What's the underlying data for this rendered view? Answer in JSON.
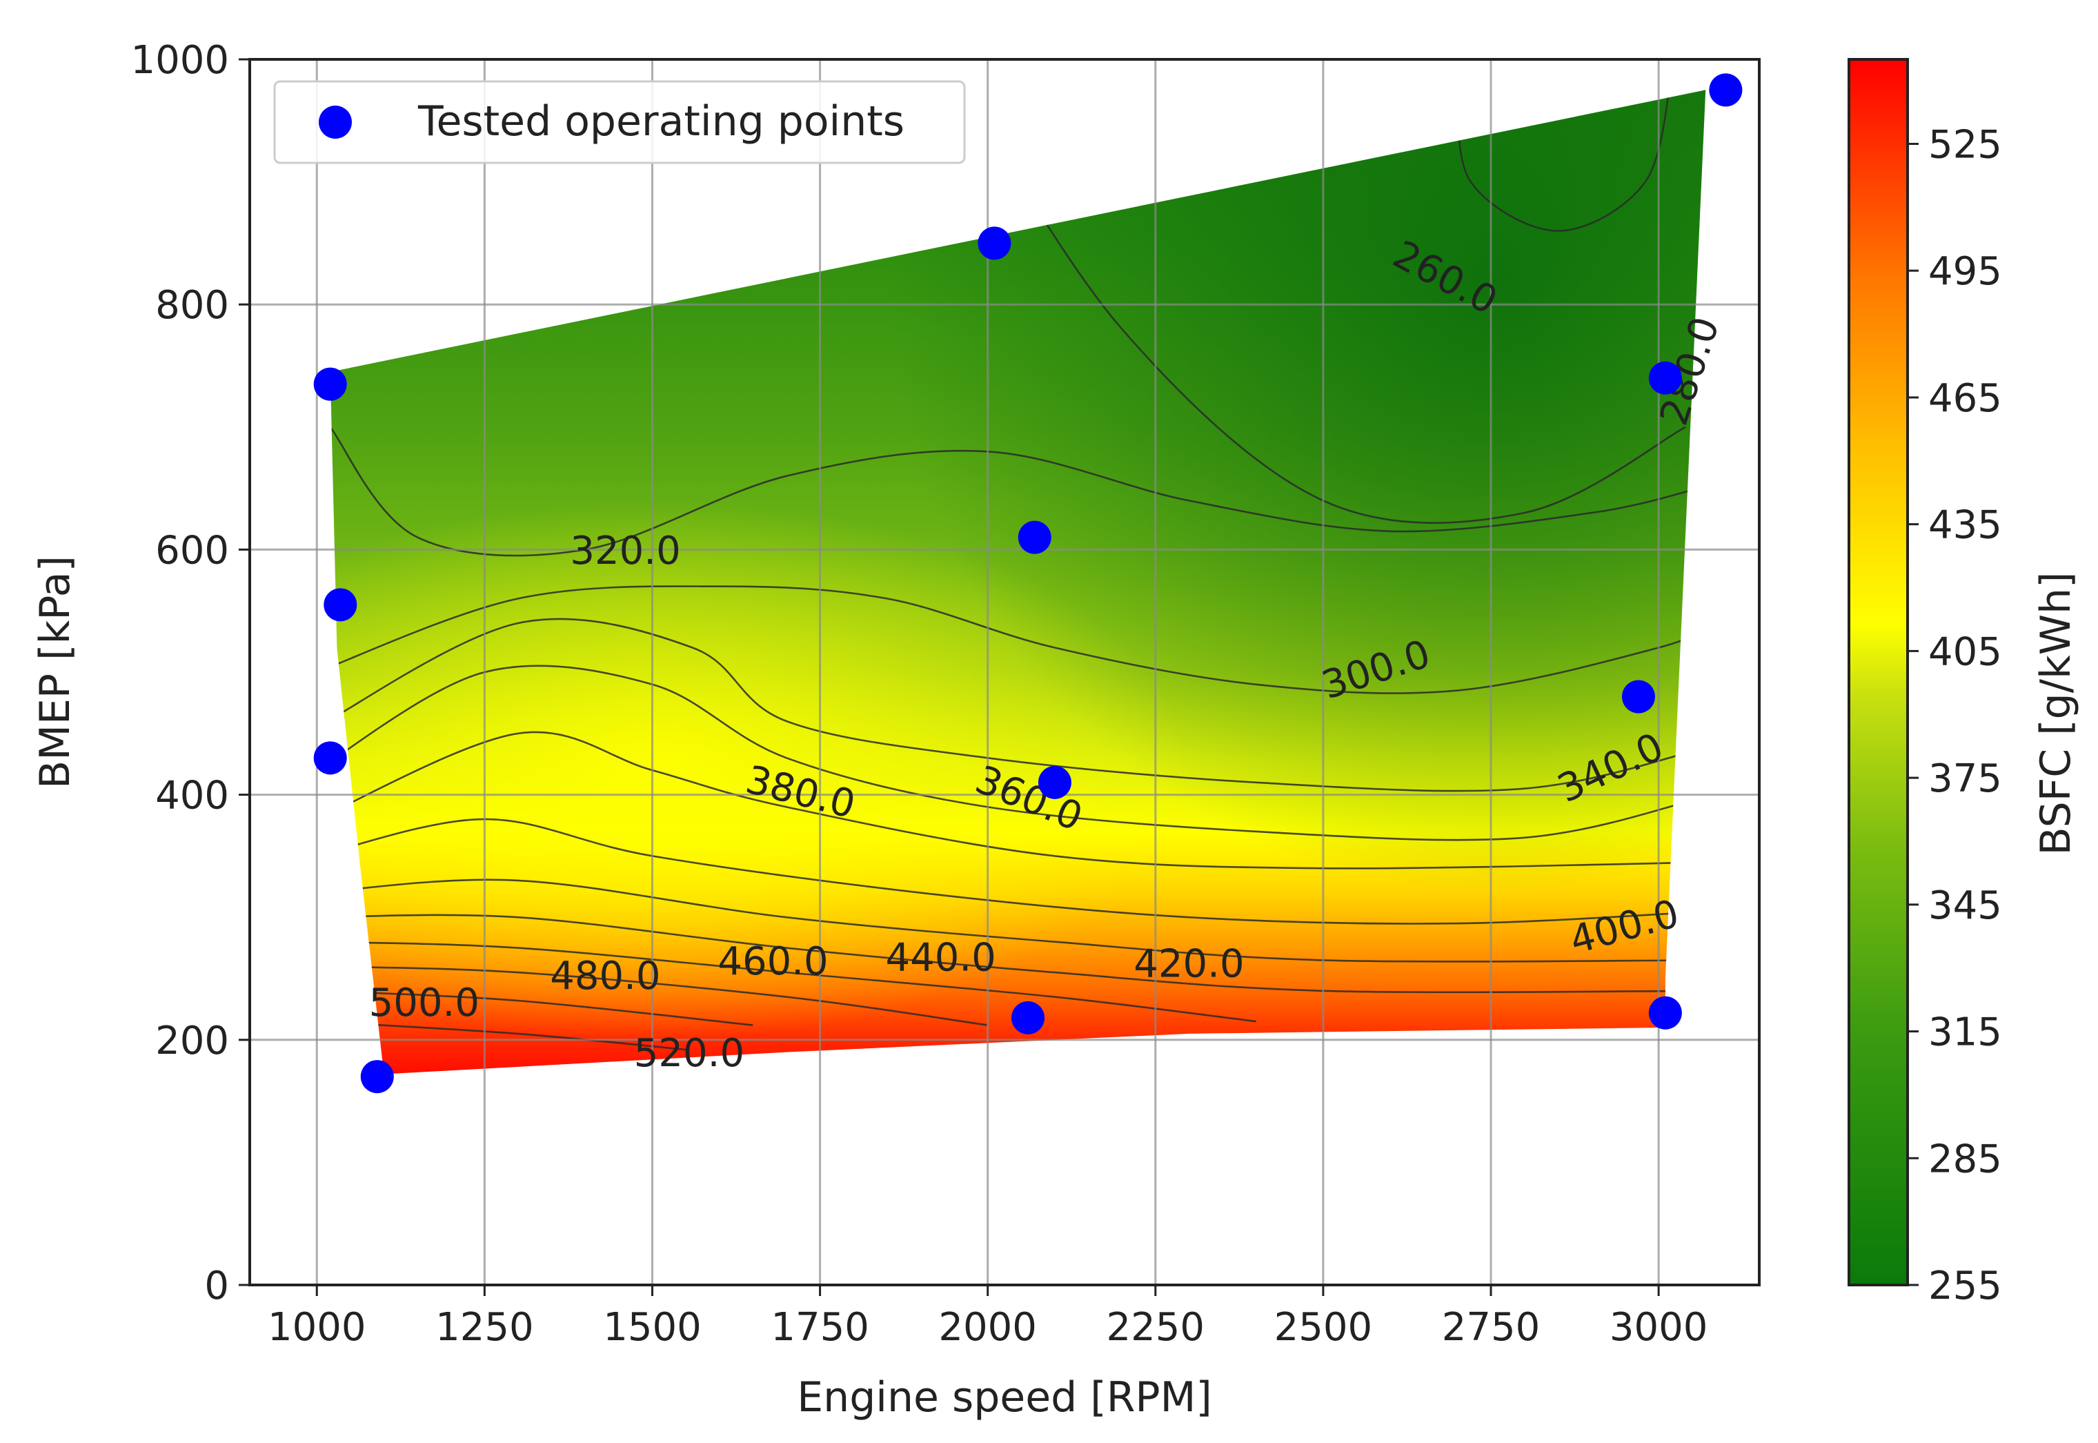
{
  "chart_data": {
    "type": "contour",
    "xlabel": "Engine speed [RPM]",
    "ylabel": "BMEP [kPa]",
    "xlim": [
      900,
      3150
    ],
    "ylim": [
      0,
      1000
    ],
    "x_ticks": [
      1000,
      1250,
      1500,
      1750,
      2000,
      2250,
      2500,
      2750,
      3000
    ],
    "y_ticks": [
      0,
      200,
      400,
      600,
      800,
      1000
    ],
    "grid": true,
    "legend": {
      "placement": "top-left",
      "entries": [
        "Tested operating points"
      ]
    },
    "colorbar": {
      "label": "BSFC [g/kWh]",
      "range": [
        255,
        545
      ],
      "ticks": [
        255,
        285,
        315,
        345,
        375,
        405,
        435,
        465,
        495,
        525
      ],
      "colors": [
        "#0a7a0a",
        "#3a9a10",
        "#7cbd10",
        "#c8e010",
        "#ffff00",
        "#ffc000",
        "#ff7800",
        "#ff0000"
      ]
    },
    "domain_boundary": {
      "top": [
        [
          1020,
          745
        ],
        [
          3070,
          975
        ]
      ],
      "right": [
        [
          3070,
          975
        ],
        [
          3010,
          250
        ]
      ],
      "bottom": [
        [
          3010,
          210
        ],
        [
          2300,
          205
        ],
        [
          1700,
          190
        ],
        [
          1100,
          172
        ]
      ],
      "left": [
        [
          1100,
          172
        ],
        [
          1065,
          340
        ],
        [
          1030,
          520
        ],
        [
          1020,
          745
        ]
      ]
    },
    "contours": [
      {
        "level": "260.0",
        "label_x": 2680,
        "label_y": 820,
        "label_angle": 28
      },
      {
        "level": "280.0",
        "label_x": 3050,
        "label_y": 745,
        "label_angle": -72
      },
      {
        "level": "300.0",
        "label_x": 2580,
        "label_y": 500,
        "label_angle": -18
      },
      {
        "level": "320.0",
        "label_x": 1460,
        "label_y": 597,
        "label_angle": 0
      },
      {
        "level": "340.0",
        "label_x": 2930,
        "label_y": 420,
        "label_angle": -25
      },
      {
        "level": "360.0",
        "label_x": 2060,
        "label_y": 395,
        "label_angle": 22
      },
      {
        "level": "380.0",
        "label_x": 1720,
        "label_y": 400,
        "label_angle": 14
      },
      {
        "level": "400.0",
        "label_x": 2950,
        "label_y": 290,
        "label_angle": -15
      },
      {
        "level": "420.0",
        "label_x": 2300,
        "label_y": 260,
        "label_angle": 0
      },
      {
        "level": "440.0",
        "label_x": 1930,
        "label_y": 265,
        "label_angle": 0
      },
      {
        "level": "460.0",
        "label_x": 1680,
        "label_y": 262,
        "label_angle": 0
      },
      {
        "level": "480.0",
        "label_x": 1430,
        "label_y": 250,
        "label_angle": 0
      },
      {
        "level": "500.0",
        "label_x": 1160,
        "label_y": 228,
        "label_angle": 0
      },
      {
        "level": "520.0",
        "label_x": 1555,
        "label_y": 187,
        "label_angle": 0
      }
    ],
    "series": [
      {
        "name": "Tested operating points",
        "type": "scatter",
        "color": "#0000ff",
        "points": [
          {
            "x": 1020,
            "y": 735
          },
          {
            "x": 1035,
            "y": 555
          },
          {
            "x": 1020,
            "y": 430
          },
          {
            "x": 1090,
            "y": 170
          },
          {
            "x": 2010,
            "y": 850
          },
          {
            "x": 2070,
            "y": 610
          },
          {
            "x": 2100,
            "y": 410
          },
          {
            "x": 2060,
            "y": 218
          },
          {
            "x": 3010,
            "y": 740
          },
          {
            "x": 2970,
            "y": 480
          },
          {
            "x": 3010,
            "y": 222
          },
          {
            "x": 3100,
            "y": 975
          }
        ]
      }
    ]
  }
}
